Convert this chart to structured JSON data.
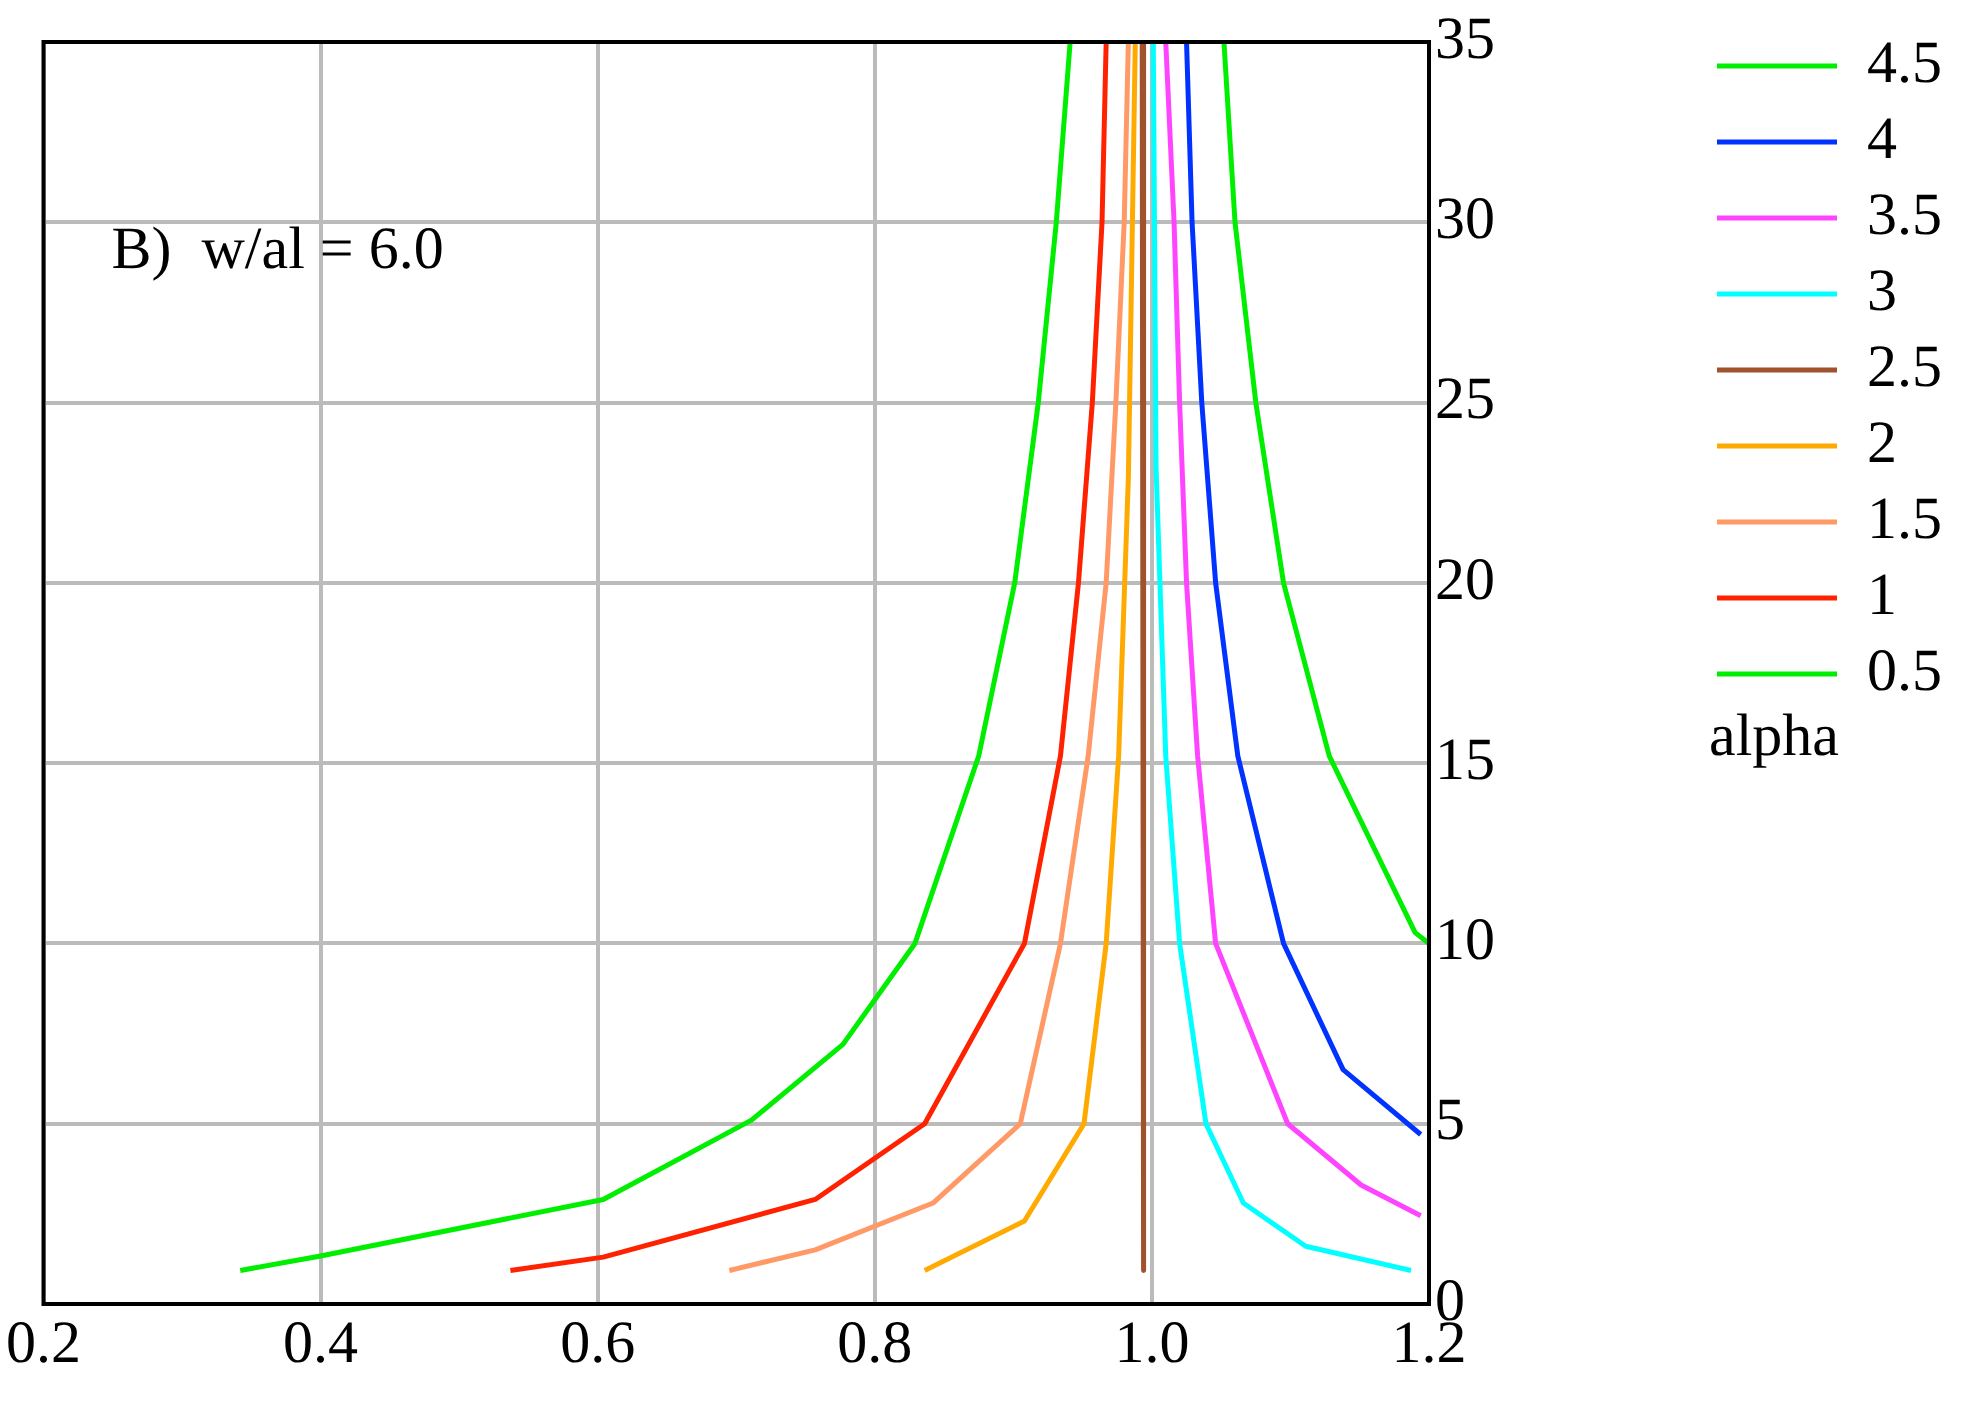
{
  "chart_data": {
    "type": "line",
    "ylabel": "alpha",
    "annotations": [
      "B)  w/al = 6.0"
    ],
    "xlim": [
      0.2,
      1.2
    ],
    "xticks": [
      0.2,
      0.4,
      0.6,
      0.8,
      {
        "value": 1,
        "label": "1.0"
      },
      1.2
    ],
    "ylim": [
      0,
      35
    ],
    "yticks": [
      0,
      5,
      10,
      15,
      20,
      25,
      30,
      35
    ],
    "grid": true,
    "legend": "top right",
    "marker": "none",
    "line_style": "solid",
    "series": [
      {
        "name": "4.5",
        "color": "#00ee00",
        "x": [
          1.052,
          1.06,
          1.075,
          1.095,
          1.128,
          1.19,
          1.2
        ],
        "values": [
          35,
          30,
          25,
          20,
          15.2,
          10.3,
          10
        ]
      },
      {
        "name": "4",
        "color": "#0033ff",
        "x": [
          1.025,
          1.029,
          1.036,
          1.046,
          1.062,
          1.095,
          1.138,
          1.194
        ],
        "values": [
          35,
          30,
          25,
          20,
          15.2,
          10,
          6.5,
          4.7
        ]
      },
      {
        "name": "3.5",
        "color": "#ff44ff",
        "x": [
          1.01,
          1.016,
          1.02,
          1.025,
          1.033,
          1.046,
          1.098,
          1.151,
          1.194
        ],
        "values": [
          35,
          30,
          25,
          20,
          15.2,
          10,
          5,
          3.3,
          2.45
        ]
      },
      {
        "name": "3",
        "color": "#00ffff",
        "x": [
          1.001,
          1.003,
          1.01,
          1.02,
          1.039,
          1.066,
          1.111,
          1.187
        ],
        "values": [
          35,
          23.2,
          15.2,
          10,
          5,
          2.8,
          1.6,
          0.93
        ]
      },
      {
        "name": "2.5",
        "color": "#a0522d",
        "x": [
          0.993,
          0.994
        ],
        "values": [
          35,
          0.93
        ]
      },
      {
        "name": "2",
        "color": "#ffaa00",
        "x": [
          0.836,
          0.908,
          0.951,
          0.967,
          0.976,
          0.983,
          0.988
        ],
        "values": [
          0.93,
          2.3,
          5,
          10,
          15.2,
          22.9,
          35
        ]
      },
      {
        "name": "1.5",
        "color": "#ff9966",
        "x": [
          0.695,
          0.757,
          0.842,
          0.905,
          0.934,
          0.954,
          0.967,
          0.974,
          0.98,
          0.983
        ],
        "values": [
          0.93,
          1.5,
          2.8,
          5,
          10,
          15.2,
          20,
          25,
          30,
          35
        ]
      },
      {
        "name": "1",
        "color": "#ff2200",
        "x": [
          0.537,
          0.604,
          0.757,
          0.836,
          0.908,
          0.934,
          0.947,
          0.957,
          0.964,
          0.967
        ],
        "values": [
          0.93,
          1.3,
          2.9,
          5,
          10,
          15.2,
          20,
          25,
          30,
          35
        ]
      },
      {
        "name": "0.5",
        "color": "#00ee00",
        "x": [
          0.342,
          0.4,
          0.604,
          0.711,
          0.777,
          0.829,
          0.875,
          0.901,
          0.918,
          0.931,
          0.941
        ],
        "values": [
          0.93,
          1.33,
          2.9,
          5.1,
          7.2,
          10,
          15.2,
          20,
          25,
          30,
          35
        ]
      }
    ]
  }
}
